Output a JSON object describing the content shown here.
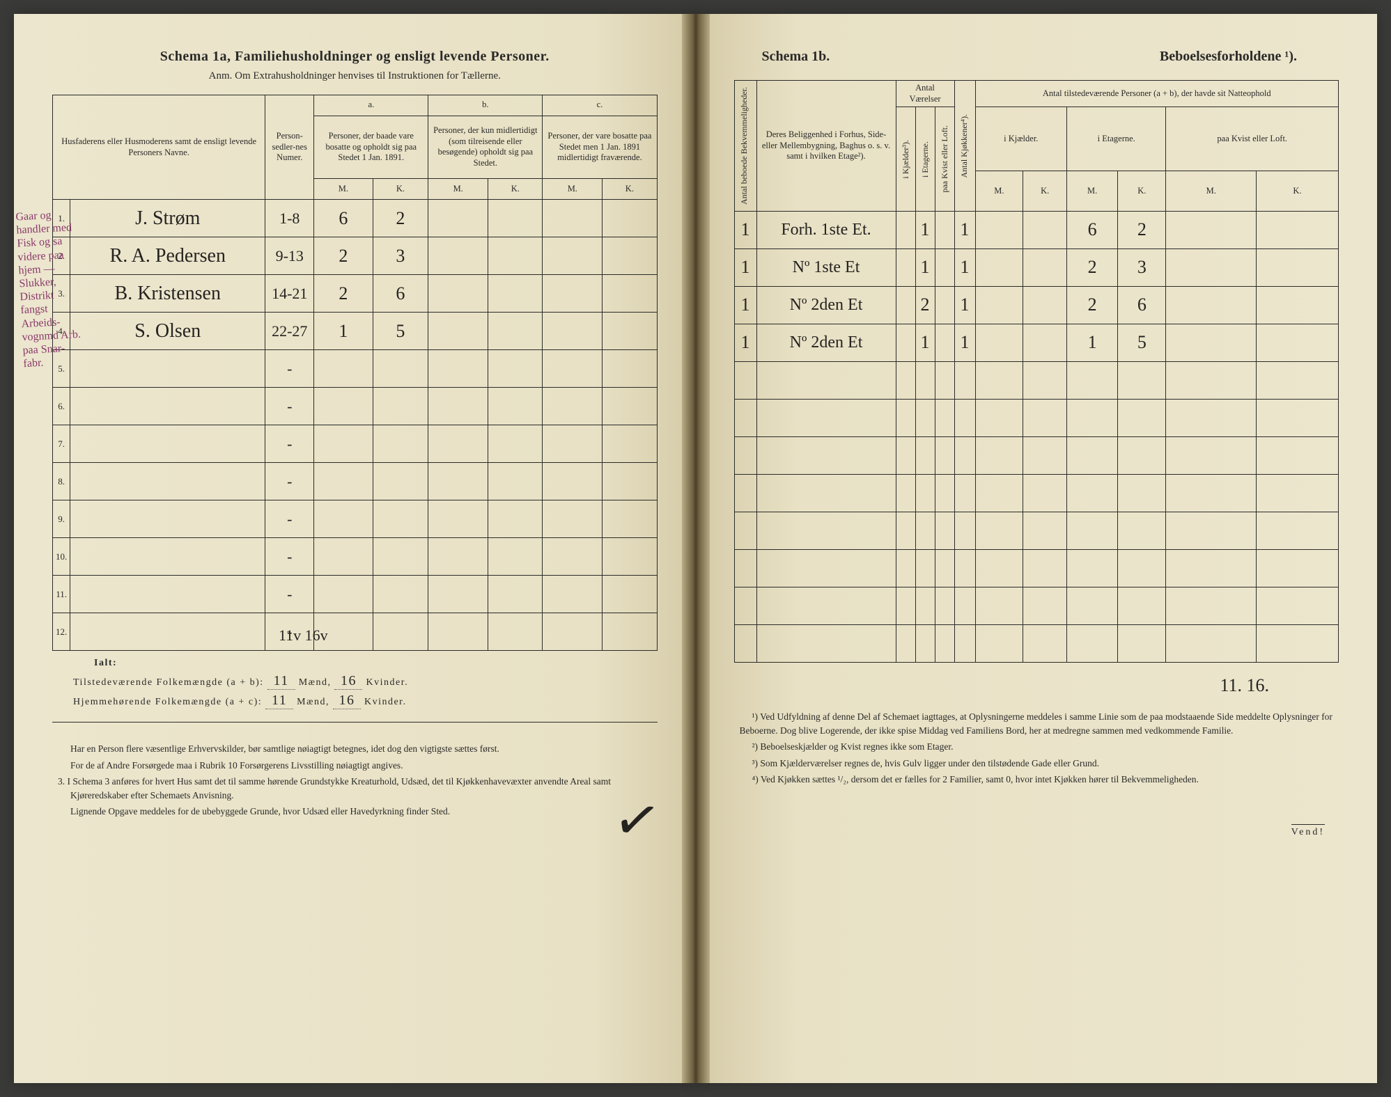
{
  "leftPage": {
    "titleMain": "Schema 1a,   Familiehusholdninger og ensligt levende Personer.",
    "titleSub": "Anm. Om Extrahusholdninger henvises til Instruktionen for Tællerne.",
    "headers": {
      "nameCol": "Husfaderens eller Husmoderens samt de ensligt levende Personers Navne.",
      "personNum": "Person-sedler-nes Numer.",
      "colA_head": "a.",
      "colA": "Personer, der baade vare bosatte og opholdt sig paa Stedet 1 Jan. 1891.",
      "colB_head": "b.",
      "colB": "Personer, der kun midlertidigt (som tilreisende eller besøgende) opholdt sig paa Stedet.",
      "colC_head": "c.",
      "colC": "Personer, der vare bosatte paa Stedet men 1 Jan. 1891 midlertidigt fraværende.",
      "M": "M.",
      "K": "K."
    },
    "rows": [
      {
        "n": "1.",
        "name": "J. Strøm",
        "pnum": "1-8",
        "aM": "6",
        "aK": "2",
        "bM": "",
        "bK": "",
        "cM": "",
        "cK": ""
      },
      {
        "n": "2.",
        "name": "R. A. Pedersen",
        "pnum": "9-13",
        "aM": "2",
        "aK": "3",
        "bM": "",
        "bK": "",
        "cM": "",
        "cK": ""
      },
      {
        "n": "3.",
        "name": "B. Kristensen",
        "pnum": "14-21",
        "aM": "2",
        "aK": "6",
        "bM": "",
        "bK": "",
        "cM": "",
        "cK": ""
      },
      {
        "n": "4.",
        "name": "S. Olsen",
        "pnum": "22-27",
        "aM": "1",
        "aK": "5",
        "bM": "",
        "bK": "",
        "cM": "",
        "cK": ""
      },
      {
        "n": "5.",
        "name": "",
        "pnum": "-",
        "aM": "",
        "aK": "",
        "bM": "",
        "bK": "",
        "cM": "",
        "cK": ""
      },
      {
        "n": "6.",
        "name": "",
        "pnum": "-",
        "aM": "",
        "aK": "",
        "bM": "",
        "bK": "",
        "cM": "",
        "cK": ""
      },
      {
        "n": "7.",
        "name": "",
        "pnum": "-",
        "aM": "",
        "aK": "",
        "bM": "",
        "bK": "",
        "cM": "",
        "cK": ""
      },
      {
        "n": "8.",
        "name": "",
        "pnum": "-",
        "aM": "",
        "aK": "",
        "bM": "",
        "bK": "",
        "cM": "",
        "cK": ""
      },
      {
        "n": "9.",
        "name": "",
        "pnum": "-",
        "aM": "",
        "aK": "",
        "bM": "",
        "bK": "",
        "cM": "",
        "cK": ""
      },
      {
        "n": "10.",
        "name": "",
        "pnum": "-",
        "aM": "",
        "aK": "",
        "bM": "",
        "bK": "",
        "cM": "",
        "cK": ""
      },
      {
        "n": "11.",
        "name": "",
        "pnum": "-",
        "aM": "",
        "aK": "",
        "bM": "",
        "bK": "",
        "cM": "",
        "cK": ""
      },
      {
        "n": "12.",
        "name": "",
        "pnum": "-",
        "aM": "",
        "aK": "",
        "bM": "",
        "bK": "",
        "cM": "",
        "cK": ""
      }
    ],
    "marginAnnotations": "Gaar og handler\nmed Fisk og\nsa videre\npaa hjem —\nSlukker, \nDistrikt\nfangst\nArbeids-\nvognmd\nArb. paa\nSnar-\nfabr.",
    "topHw": "11v   16v",
    "totals": {
      "ialt": "Ialt:",
      "line1_pre": "Tilstedeværende Folkemængde (a + b): ",
      "line1_m": "11",
      "line1_mid": " Mænd, ",
      "line1_k": "16",
      "line1_post": " Kvinder.",
      "line2_pre": "Hjemmehørende Folkemængde (a + c): ",
      "line2_m": "11",
      "line2_mid": " Mænd, ",
      "line2_k": "16",
      "line2_post": " Kvinder."
    },
    "footnotes": [
      "Har en Person flere væsentlige Erhvervskilder, bør samtlige nøiagtigt betegnes, idet dog den vigtigste sættes først.",
      "For de af Andre Forsørgede maa i Rubrik 10 Forsørgerens Livsstilling nøiagtigt angives.",
      "3. I Schema 3 anføres for hvert Hus samt det til samme hørende Grundstykke Kreaturhold, Udsæd, det til Kjøkkenhavevæxter anvendte Areal samt Kjøreredskaber efter Schemaets Anvisning.",
      "Lignende Opgave meddeles for de ubebyggede Grunde, hvor Udsæd eller Havedyrkning finder Sted."
    ]
  },
  "rightPage": {
    "titleA": "Schema 1b.",
    "titleB": "Beboelsesforholdene ¹).",
    "headers": {
      "antalBekvem": "Antal beboede Bekvemmeligheder.",
      "belig": "Deres Beliggenhed i Forhus, Side- eller Mellembygning, Baghus o. s. v. samt i hvilken Etage²).",
      "antalVaer": "Antal Værelser",
      "iKjaelder": "i Kjælder³).",
      "iEtag": "i Etagerne.",
      "paaKvist": "paa Kvist eller Loft.",
      "kjokken": "Antal Kjøkkener⁴).",
      "tilstede": "Antal tilstedeværende Personer (a + b), der havde sit Natteophold",
      "iKjaelder2": "i Kjælder.",
      "iEtag2": "i Etagerne.",
      "paaKvist2": "paa Kvist eller Loft.",
      "M": "M.",
      "K": "K."
    },
    "rows": [
      {
        "ab": "1",
        "bel": "Forh. 1ste Et.",
        "kj": "",
        "et": "1",
        "kv": "",
        "kk": "1",
        "kjM": "",
        "kjK": "",
        "etM": "6",
        "etK": "2",
        "kvM": "",
        "kvK": ""
      },
      {
        "ab": "1",
        "bel": "Nº   1ste Et",
        "kj": "",
        "et": "1",
        "kv": "",
        "kk": "1",
        "kjM": "",
        "kjK": "",
        "etM": "2",
        "etK": "3",
        "kvM": "",
        "kvK": ""
      },
      {
        "ab": "1",
        "bel": "Nº   2den Et",
        "kj": "",
        "et": "2",
        "kv": "",
        "kk": "1",
        "kjM": "",
        "kjK": "",
        "etM": "2",
        "etK": "6",
        "kvM": "",
        "kvK": ""
      },
      {
        "ab": "1",
        "bel": "Nº   2den Et",
        "kj": "",
        "et": "1",
        "kv": "",
        "kk": "1",
        "kjM": "",
        "kjK": "",
        "etM": "1",
        "etK": "5",
        "kvM": "",
        "kvK": ""
      },
      {
        "ab": "",
        "bel": "",
        "kj": "",
        "et": "",
        "kv": "",
        "kk": "",
        "kjM": "",
        "kjK": "",
        "etM": "",
        "etK": "",
        "kvM": "",
        "kvK": ""
      },
      {
        "ab": "",
        "bel": "",
        "kj": "",
        "et": "",
        "kv": "",
        "kk": "",
        "kjM": "",
        "kjK": "",
        "etM": "",
        "etK": "",
        "kvM": "",
        "kvK": ""
      },
      {
        "ab": "",
        "bel": "",
        "kj": "",
        "et": "",
        "kv": "",
        "kk": "",
        "kjM": "",
        "kjK": "",
        "etM": "",
        "etK": "",
        "kvM": "",
        "kvK": ""
      },
      {
        "ab": "",
        "bel": "",
        "kj": "",
        "et": "",
        "kv": "",
        "kk": "",
        "kjM": "",
        "kjK": "",
        "etM": "",
        "etK": "",
        "kvM": "",
        "kvK": ""
      },
      {
        "ab": "",
        "bel": "",
        "kj": "",
        "et": "",
        "kv": "",
        "kk": "",
        "kjM": "",
        "kjK": "",
        "etM": "",
        "etK": "",
        "kvM": "",
        "kvK": ""
      },
      {
        "ab": "",
        "bel": "",
        "kj": "",
        "et": "",
        "kv": "",
        "kk": "",
        "kjM": "",
        "kjK": "",
        "etM": "",
        "etK": "",
        "kvM": "",
        "kvK": ""
      },
      {
        "ab": "",
        "bel": "",
        "kj": "",
        "et": "",
        "kv": "",
        "kk": "",
        "kjM": "",
        "kjK": "",
        "etM": "",
        "etK": "",
        "kvM": "",
        "kvK": ""
      },
      {
        "ab": "",
        "bel": "",
        "kj": "",
        "et": "",
        "kv": "",
        "kk": "",
        "kjM": "",
        "kjK": "",
        "etM": "",
        "etK": "",
        "kvM": "",
        "kvK": ""
      }
    ],
    "rightSum": "11. 16.",
    "footnotes": [
      "¹) Ved Udfyldning af denne Del af Schemaet iagttages, at Oplysningerne meddeles i samme Linie som de paa modstaaende Side meddelte Oplysninger for Beboerne. Dog blive Logerende, der ikke spise Middag ved Familiens Bord, her at medregne sammen med vedkommende Familie.",
      "²) Beboelseskjælder og Kvist regnes ikke som Etager.",
      "³) Som Kjælderværelser regnes de, hvis Gulv ligger under den tilstødende Gade eller Grund.",
      "⁴) Ved Kjøkken sættes ¹/₂, dersom det er fælles for 2 Familier, samt 0, hvor intet Kjøkken hører til Bekvemmeligheden."
    ],
    "vend": "Vend!"
  }
}
